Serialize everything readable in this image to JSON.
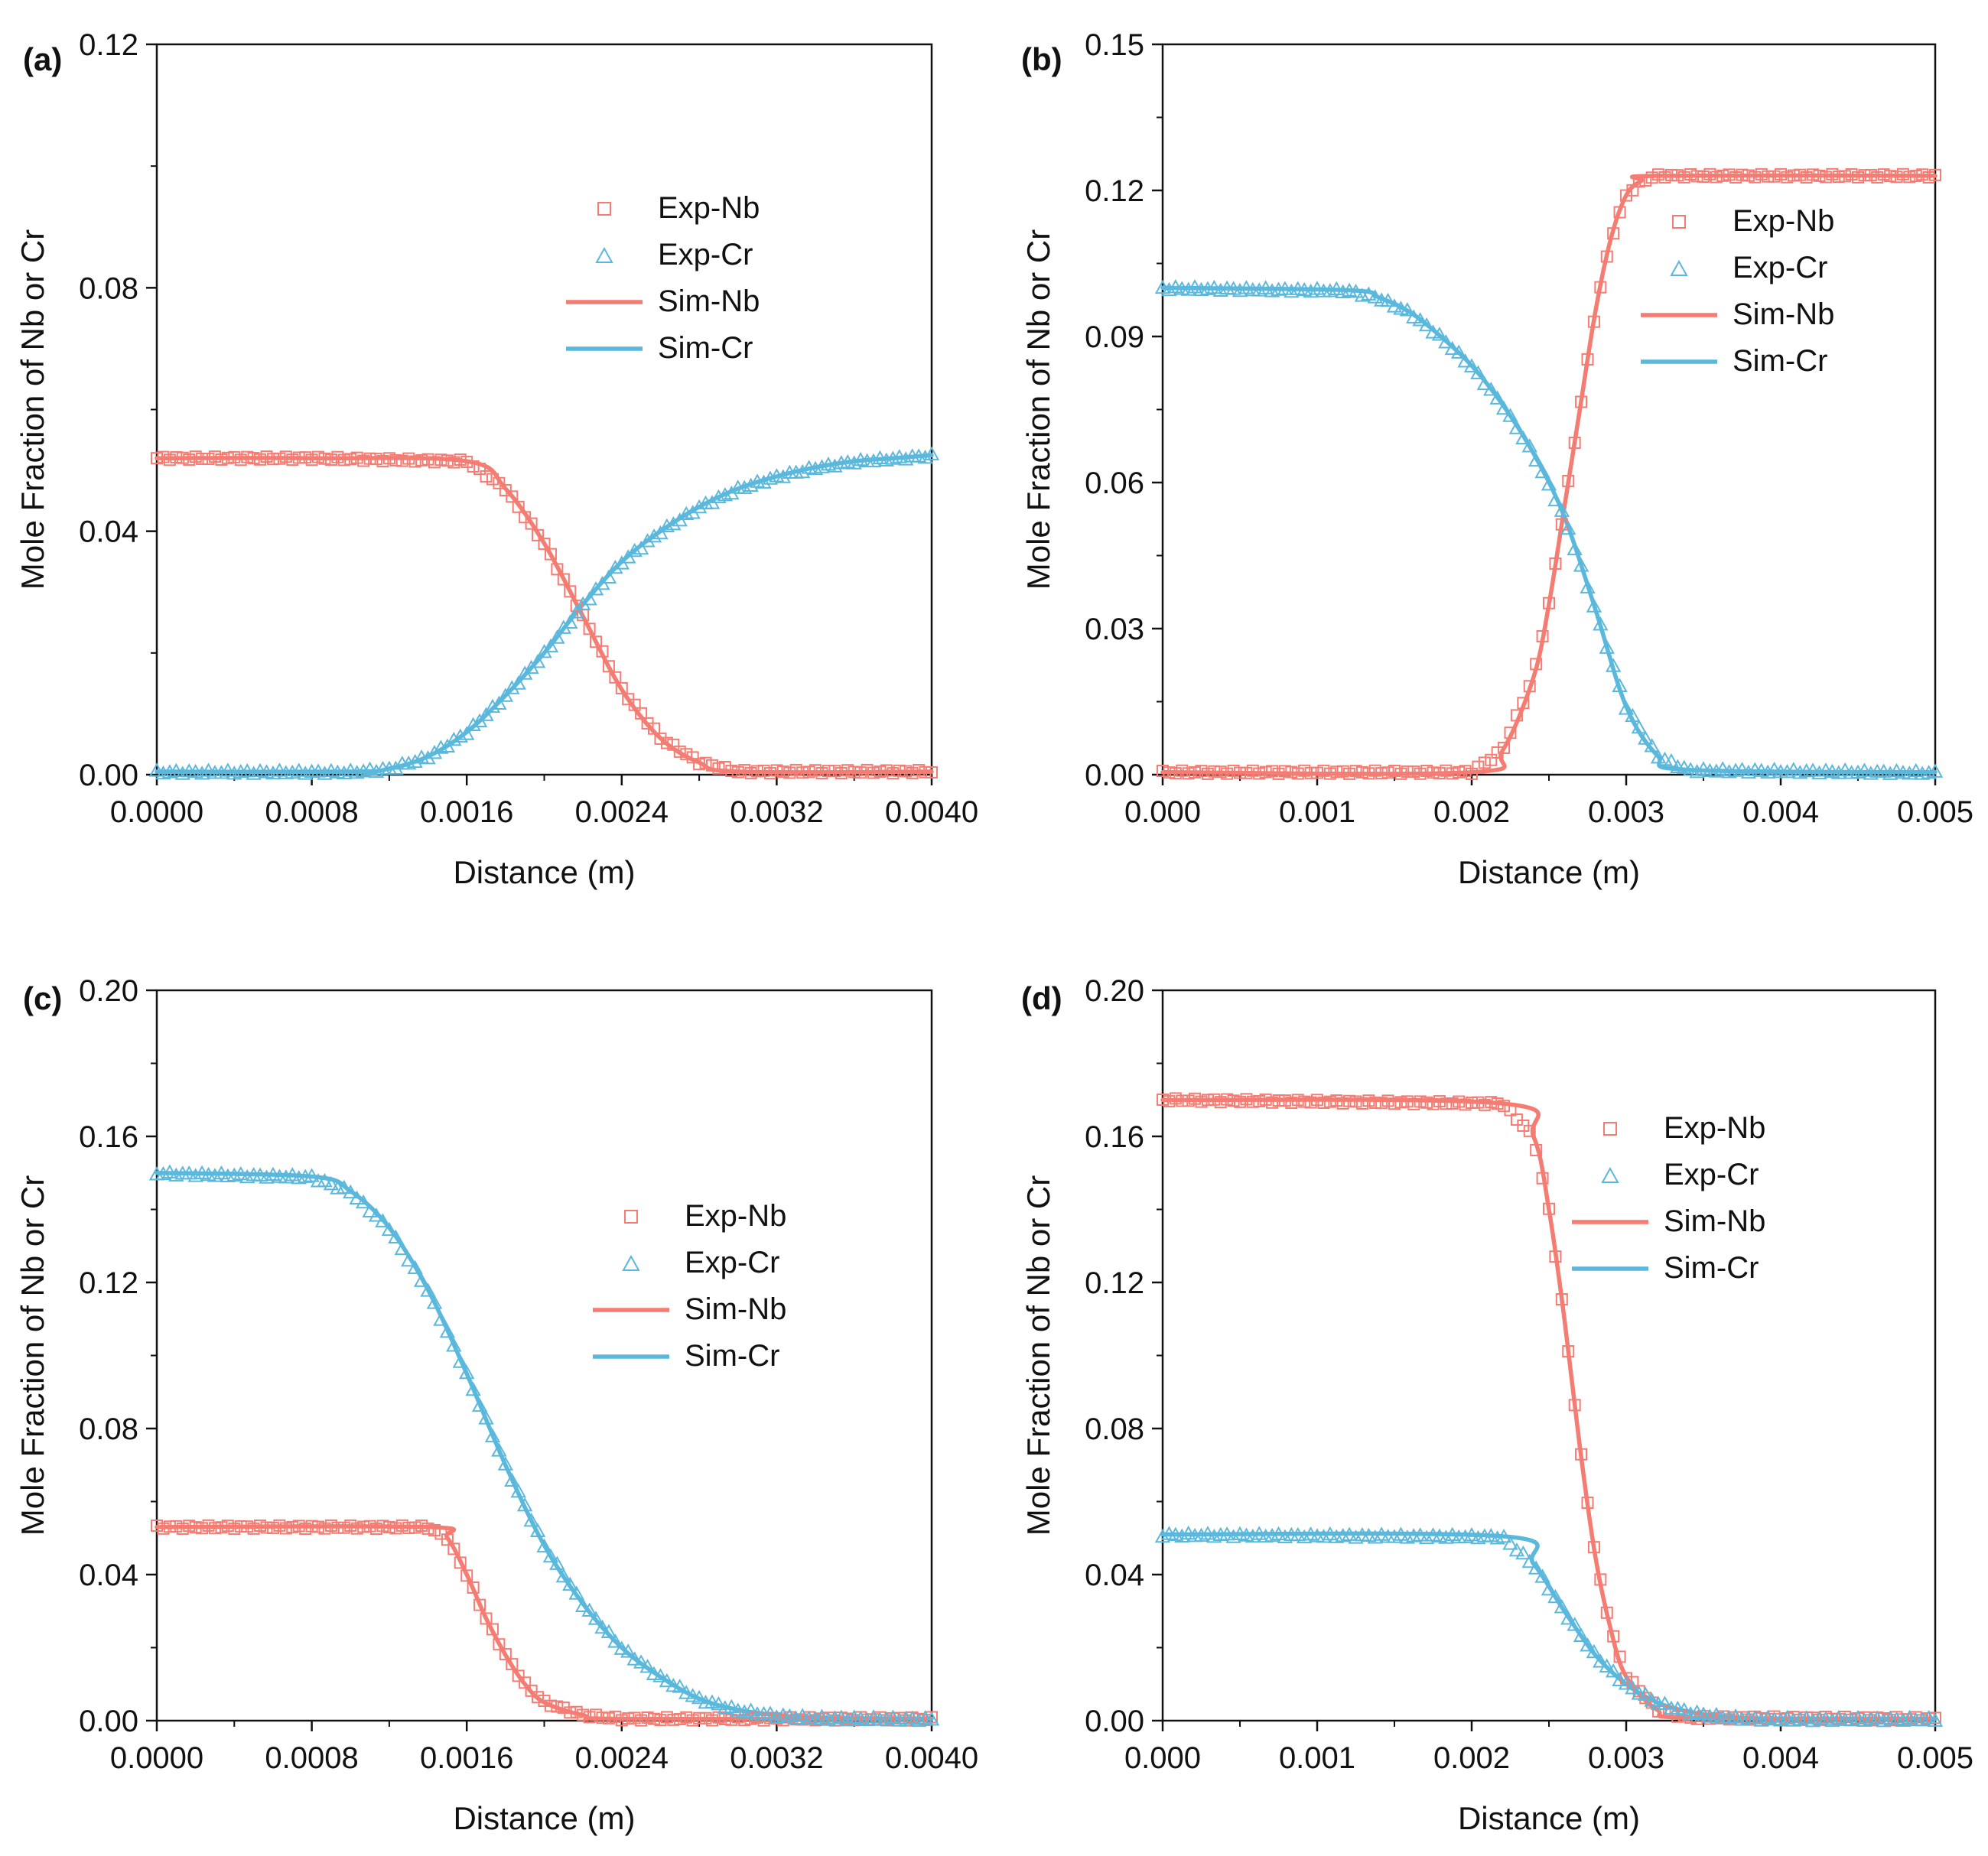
{
  "colors": {
    "nb": "#f47c72",
    "cr": "#5bb8dd",
    "axis": "#111111"
  },
  "chart_data": [
    {
      "panel": "(a)",
      "type": "line",
      "xlabel": "Distance (m)",
      "ylabel": "Mole Fraction of Nb or Cr",
      "xlim": [
        0,
        0.004
      ],
      "ylim": [
        0,
        0.12
      ],
      "x_ticks": [
        0,
        0.0008,
        0.0016,
        0.0024,
        0.0032,
        0.004
      ],
      "x_tick_labels": [
        "0.0000",
        "0.0008",
        "0.0016",
        "0.0024",
        "0.0032",
        "0.0040"
      ],
      "y_ticks": [
        0,
        0.04,
        0.08,
        0.12
      ],
      "y_tick_labels": [
        "0.00",
        "0.04",
        "0.08",
        "0.12"
      ],
      "legend": [
        "Exp-Nb",
        "Exp-Cr",
        "Sim-Nb",
        "Sim-Cr"
      ],
      "legend_position": "center-right",
      "exp_points": 120,
      "series": [
        {
          "name": "Nb",
          "x": [
            0,
            0.0008,
            0.0016,
            0.0018,
            0.002,
            0.0022,
            0.0024,
            0.0026,
            0.0028,
            0.003,
            0.004
          ],
          "values": [
            0.052,
            0.052,
            0.0515,
            0.047,
            0.038,
            0.026,
            0.014,
            0.006,
            0.002,
            0.0005,
            0.0005
          ]
        },
        {
          "name": "Cr",
          "x": [
            0,
            0.001,
            0.0012,
            0.0014,
            0.0016,
            0.0018,
            0.002,
            0.0022,
            0.0024,
            0.0026,
            0.0028,
            0.003,
            0.0032,
            0.0034,
            0.0036,
            0.0038,
            0.004
          ],
          "values": [
            0.0005,
            0.0005,
            0.001,
            0.003,
            0.007,
            0.013,
            0.02,
            0.028,
            0.035,
            0.04,
            0.044,
            0.047,
            0.049,
            0.0505,
            0.0515,
            0.052,
            0.0525
          ]
        }
      ]
    },
    {
      "panel": "(b)",
      "type": "line",
      "xlabel": "Distance (m)",
      "ylabel": "Mole Fraction of Nb or Cr",
      "xlim": [
        0,
        0.005
      ],
      "ylim": [
        0,
        0.15
      ],
      "x_ticks": [
        0,
        0.001,
        0.002,
        0.003,
        0.004,
        0.005
      ],
      "x_tick_labels": [
        "0.000",
        "0.001",
        "0.002",
        "0.003",
        "0.004",
        "0.005"
      ],
      "y_ticks": [
        0,
        0.03,
        0.06,
        0.09,
        0.12,
        0.15
      ],
      "y_tick_labels": [
        "0.00",
        "0.03",
        "0.06",
        "0.09",
        "0.12",
        "0.15"
      ],
      "legend": [
        "Exp-Nb",
        "Exp-Cr",
        "Sim-Nb",
        "Sim-Cr"
      ],
      "legend_position": "top-right",
      "exp_points": 120,
      "series": [
        {
          "name": "Nb",
          "x": [
            0,
            0.002,
            0.0022,
            0.0024,
            0.0025,
            0.0026,
            0.0027,
            0.0028,
            0.0029,
            0.003,
            0.0031,
            0.0032,
            0.005
          ],
          "values": [
            0.0005,
            0.0005,
            0.005,
            0.02,
            0.035,
            0.055,
            0.075,
            0.095,
            0.11,
            0.119,
            0.122,
            0.123,
            0.123
          ]
        },
        {
          "name": "Cr",
          "x": [
            0,
            0.0012,
            0.0014,
            0.0016,
            0.0018,
            0.002,
            0.0022,
            0.0024,
            0.0026,
            0.0028,
            0.003,
            0.0032,
            0.0034,
            0.005
          ],
          "values": [
            0.1,
            0.0995,
            0.098,
            0.095,
            0.09,
            0.084,
            0.076,
            0.066,
            0.053,
            0.034,
            0.014,
            0.004,
            0.001,
            0.0005
          ]
        }
      ]
    },
    {
      "panel": "(c)",
      "type": "line",
      "xlabel": "Distance (m)",
      "ylabel": "Mole Fraction of Nb or Cr",
      "xlim": [
        0,
        0.004
      ],
      "ylim": [
        0,
        0.2
      ],
      "x_ticks": [
        0,
        0.0008,
        0.0016,
        0.0024,
        0.0032,
        0.004
      ],
      "x_tick_labels": [
        "0.0000",
        "0.0008",
        "0.0016",
        "0.0024",
        "0.0032",
        "0.0040"
      ],
      "y_ticks": [
        0,
        0.04,
        0.08,
        0.12,
        0.16,
        0.2
      ],
      "y_tick_labels": [
        "0.00",
        "0.04",
        "0.08",
        "0.12",
        "0.16",
        "0.20"
      ],
      "legend": [
        "Exp-Nb",
        "Exp-Cr",
        "Sim-Nb",
        "Sim-Cr"
      ],
      "legend_position": "center-right",
      "exp_points": 120,
      "series": [
        {
          "name": "Nb",
          "x": [
            0,
            0.0014,
            0.0015,
            0.0016,
            0.0017,
            0.0018,
            0.0019,
            0.002,
            0.0022,
            0.0024,
            0.004
          ],
          "values": [
            0.053,
            0.053,
            0.05,
            0.04,
            0.028,
            0.018,
            0.01,
            0.005,
            0.0015,
            0.0005,
            0.0005
          ]
        },
        {
          "name": "Cr",
          "x": [
            0,
            0.0008,
            0.001,
            0.0012,
            0.0014,
            0.0016,
            0.0018,
            0.002,
            0.0022,
            0.0024,
            0.0026,
            0.0028,
            0.003,
            0.0032,
            0.0034,
            0.004
          ],
          "values": [
            0.15,
            0.149,
            0.145,
            0.135,
            0.118,
            0.095,
            0.07,
            0.048,
            0.032,
            0.02,
            0.012,
            0.006,
            0.003,
            0.0015,
            0.0008,
            0.0005
          ]
        }
      ]
    },
    {
      "panel": "(d)",
      "type": "line",
      "xlabel": "Distance (m)",
      "ylabel": "Mole Fraction of Nb or Cr",
      "xlim": [
        0,
        0.005
      ],
      "ylim": [
        0,
        0.2
      ],
      "x_ticks": [
        0,
        0.001,
        0.002,
        0.003,
        0.004,
        0.005
      ],
      "x_tick_labels": [
        "0.000",
        "0.001",
        "0.002",
        "0.003",
        "0.004",
        "0.005"
      ],
      "y_ticks": [
        0,
        0.04,
        0.08,
        0.12,
        0.16,
        0.2
      ],
      "y_tick_labels": [
        "0.00",
        "0.04",
        "0.08",
        "0.12",
        "0.16",
        "0.20"
      ],
      "legend": [
        "Exp-Nb",
        "Exp-Cr",
        "Sim-Nb",
        "Sim-Cr"
      ],
      "legend_position": "center-right",
      "exp_points": 120,
      "series": [
        {
          "name": "Nb",
          "x": [
            0,
            0.0022,
            0.0024,
            0.0025,
            0.0026,
            0.0027,
            0.0028,
            0.0029,
            0.003,
            0.0032,
            0.0034,
            0.005
          ],
          "values": [
            0.17,
            0.169,
            0.16,
            0.14,
            0.11,
            0.075,
            0.045,
            0.025,
            0.012,
            0.003,
            0.0008,
            0.0005
          ]
        },
        {
          "name": "Cr",
          "x": [
            0,
            0.0022,
            0.0024,
            0.0026,
            0.0028,
            0.003,
            0.0032,
            0.0034,
            0.0036,
            0.0038,
            0.004,
            0.005
          ],
          "values": [
            0.051,
            0.0505,
            0.043,
            0.03,
            0.018,
            0.01,
            0.005,
            0.0025,
            0.0012,
            0.0007,
            0.0005,
            0.0005
          ]
        }
      ]
    }
  ]
}
